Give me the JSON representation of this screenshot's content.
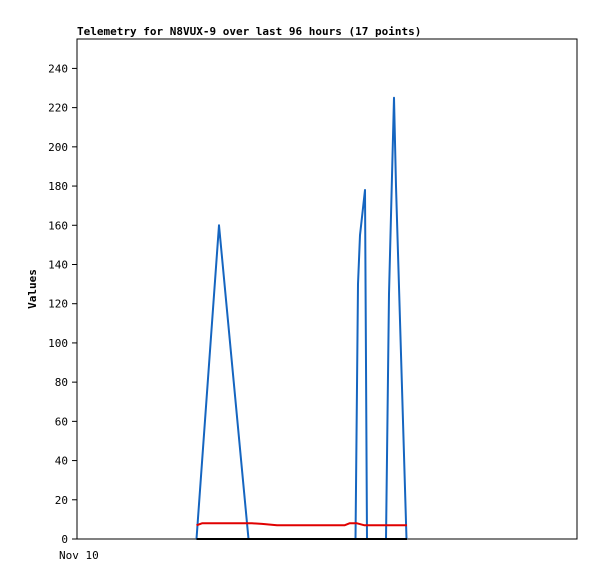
{
  "chart_data": {
    "type": "line",
    "title": "Telemetry for N8VUX-9 over last 96 hours (17 points)",
    "xlabel": "",
    "ylabel": "Values",
    "x_tick_labels": [
      "Nov 10"
    ],
    "xlim": [
      0,
      100
    ],
    "ylim": [
      0,
      255
    ],
    "y_ticks": [
      0,
      20,
      40,
      60,
      80,
      100,
      120,
      140,
      160,
      180,
      200,
      220,
      240
    ],
    "grid": false,
    "legend": "none",
    "series": [
      {
        "color": "#1565c0",
        "points": [
          [
            23.9,
            0
          ],
          [
            28.4,
            160
          ],
          [
            34.3,
            0
          ],
          [
            55.7,
            0
          ],
          [
            56.2,
            130
          ],
          [
            56.6,
            155
          ],
          [
            57.6,
            178
          ],
          [
            58.0,
            0
          ],
          [
            61.8,
            0
          ],
          [
            62.4,
            125
          ],
          [
            63.4,
            225
          ],
          [
            63.8,
            180
          ],
          [
            65.9,
            0
          ]
        ]
      },
      {
        "color": "#e00000",
        "points": [
          [
            23.9,
            7
          ],
          [
            25.0,
            8
          ],
          [
            30.0,
            8
          ],
          [
            35.0,
            8
          ],
          [
            37.0,
            7.7
          ],
          [
            40.0,
            7
          ],
          [
            45.0,
            7
          ],
          [
            50.0,
            7
          ],
          [
            53.5,
            7
          ],
          [
            54.5,
            8
          ],
          [
            56.0,
            8
          ],
          [
            57.5,
            7
          ],
          [
            62.0,
            7
          ],
          [
            66.0,
            7
          ]
        ]
      },
      {
        "color": "#000000",
        "points": [
          [
            23.9,
            0
          ],
          [
            66.0,
            0
          ]
        ]
      }
    ]
  }
}
